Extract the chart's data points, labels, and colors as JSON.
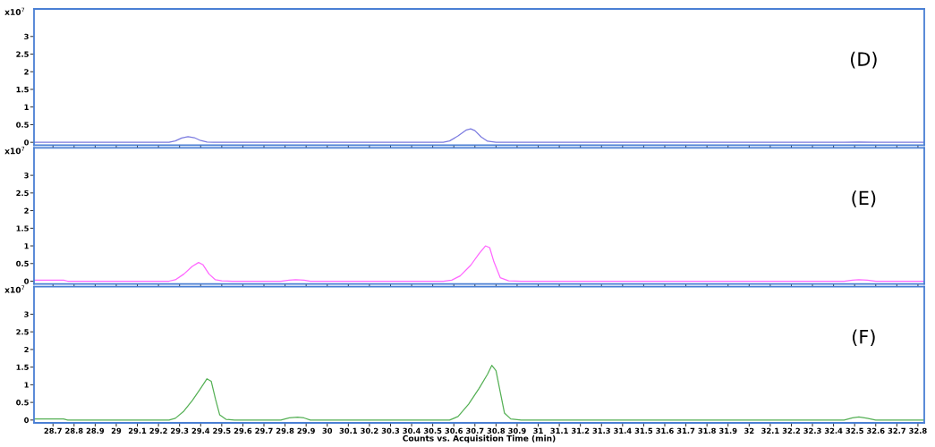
{
  "chart_data": [
    {
      "type": "line",
      "ylabel": "x10$^{7}$",
      "annotations": [
        "(D)"
      ],
      "xlim": [
        28.61,
        32.83
      ],
      "ylim": [
        -0.08,
        3.78
      ],
      "xticks": [
        28.7,
        28.8,
        28.9,
        29,
        29.1,
        29.2,
        29.3,
        29.4,
        29.5,
        29.6,
        29.7,
        29.8,
        29.9,
        30,
        30.1,
        30.2,
        30.3,
        30.4,
        30.5,
        30.6,
        30.7,
        30.8,
        30.9,
        31,
        31.1,
        31.2,
        31.3,
        31.4,
        31.5,
        31.6,
        31.7,
        31.8,
        31.9,
        32,
        32.1,
        32.2,
        32.3,
        32.4,
        32.5,
        32.6,
        32.7,
        32.8
      ],
      "yticks": [
        0,
        0.5,
        1,
        1.5,
        2,
        2.5,
        3
      ],
      "tick_labels": "y",
      "series": [
        {
          "color": "#7b7be0",
          "x": [
            28.61,
            29.25,
            29.28,
            29.31,
            29.34,
            29.37,
            29.4,
            29.43,
            29.46,
            30.55,
            30.58,
            30.62,
            30.66,
            30.68,
            30.7,
            30.73,
            30.76,
            30.8,
            32.45,
            32.52,
            32.6,
            32.83
          ],
          "values": [
            0,
            0,
            0.04,
            0.12,
            0.16,
            0.13,
            0.05,
            0.01,
            0,
            0,
            0.04,
            0.18,
            0.35,
            0.38,
            0.33,
            0.15,
            0.03,
            0,
            0,
            0.01,
            0,
            0
          ]
        }
      ]
    },
    {
      "type": "line",
      "ylabel": "x10$^{7}$",
      "annotations": [
        "(E)"
      ],
      "xlim": [
        28.61,
        32.83
      ],
      "ylim": [
        -0.08,
        3.78
      ],
      "xticks": [
        28.7,
        28.8,
        28.9,
        29,
        29.1,
        29.2,
        29.3,
        29.4,
        29.5,
        29.6,
        29.7,
        29.8,
        29.9,
        30,
        30.1,
        30.2,
        30.3,
        30.4,
        30.5,
        30.6,
        30.7,
        30.8,
        30.9,
        31,
        31.1,
        31.2,
        31.3,
        31.4,
        31.5,
        31.6,
        31.7,
        31.8,
        31.9,
        32,
        32.1,
        32.2,
        32.3,
        32.4,
        32.5,
        32.6,
        32.7,
        32.8
      ],
      "yticks": [
        0,
        0.5,
        1,
        1.5,
        2,
        2.5,
        3
      ],
      "tick_labels": "y",
      "series": [
        {
          "color": "#ff66ff",
          "x": [
            28.61,
            28.75,
            28.77,
            29.25,
            29.28,
            29.32,
            29.36,
            29.39,
            29.41,
            29.44,
            29.47,
            29.5,
            29.55,
            29.78,
            29.82,
            29.85,
            29.89,
            29.92,
            30.55,
            30.59,
            30.63,
            30.68,
            30.72,
            30.75,
            30.77,
            30.79,
            30.82,
            30.86,
            30.92,
            32.45,
            32.49,
            32.52,
            32.56,
            32.6,
            32.83
          ],
          "values": [
            0.03,
            0.03,
            0,
            0,
            0.04,
            0.2,
            0.42,
            0.53,
            0.47,
            0.2,
            0.04,
            0.01,
            0,
            0,
            0.03,
            0.04,
            0.03,
            0,
            0,
            0.03,
            0.15,
            0.45,
            0.78,
            1.0,
            0.95,
            0.55,
            0.1,
            0.01,
            0,
            0,
            0.03,
            0.04,
            0.03,
            0,
            0
          ]
        }
      ]
    },
    {
      "type": "line",
      "xlabel": "Counts vs. Acquisition Time (min)",
      "ylabel": "x10$^{7}$",
      "annotations": [
        "(F)"
      ],
      "xlim": [
        28.61,
        32.83
      ],
      "ylim": [
        -0.08,
        3.78
      ],
      "xticks": [
        28.7,
        28.8,
        28.9,
        29,
        29.1,
        29.2,
        29.3,
        29.4,
        29.5,
        29.6,
        29.7,
        29.8,
        29.9,
        30,
        30.1,
        30.2,
        30.3,
        30.4,
        30.5,
        30.6,
        30.7,
        30.8,
        30.9,
        31,
        31.1,
        31.2,
        31.3,
        31.4,
        31.5,
        31.6,
        31.7,
        31.8,
        31.9,
        32,
        32.1,
        32.2,
        32.3,
        32.4,
        32.5,
        32.6,
        32.7,
        32.8
      ],
      "yticks": [
        0,
        0.5,
        1,
        1.5,
        2,
        2.5,
        3
      ],
      "series": [
        {
          "color": "#55b055",
          "x": [
            28.61,
            28.75,
            28.77,
            29.25,
            29.28,
            29.32,
            29.36,
            29.4,
            29.43,
            29.45,
            29.47,
            29.49,
            29.52,
            29.56,
            29.78,
            29.82,
            29.86,
            29.89,
            29.92,
            30.58,
            30.62,
            30.67,
            30.72,
            30.76,
            30.78,
            30.8,
            30.82,
            30.84,
            30.87,
            30.92,
            32.45,
            32.49,
            32.52,
            32.56,
            32.6,
            32.83
          ],
          "values": [
            0.03,
            0.03,
            0,
            0,
            0.05,
            0.25,
            0.55,
            0.9,
            1.17,
            1.1,
            0.6,
            0.15,
            0.02,
            0,
            0,
            0.06,
            0.08,
            0.06,
            0,
            0,
            0.1,
            0.45,
            0.9,
            1.3,
            1.55,
            1.4,
            0.8,
            0.2,
            0.03,
            0,
            0,
            0.06,
            0.09,
            0.05,
            0,
            0
          ]
        }
      ]
    }
  ]
}
